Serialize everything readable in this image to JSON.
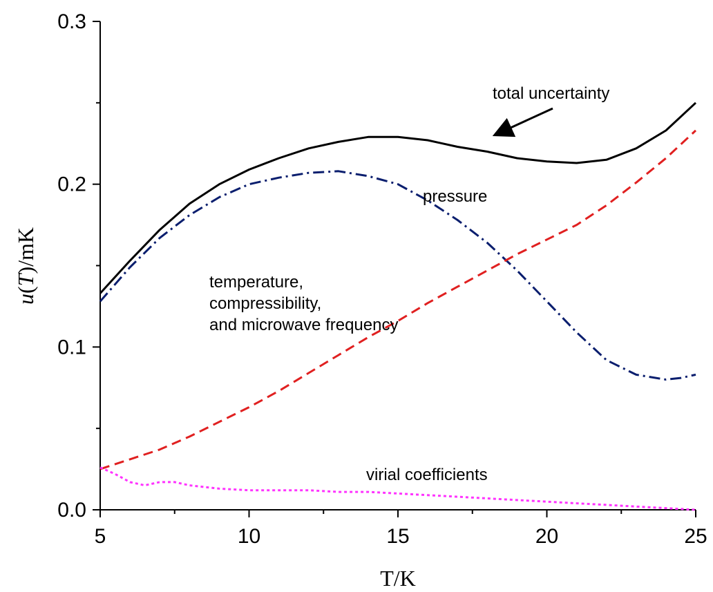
{
  "chart_data": {
    "type": "line",
    "xlabel": "T/K",
    "ylabel_parts": [
      "u",
      "(",
      "T",
      ")/mK"
    ],
    "xlim": [
      5,
      25
    ],
    "ylim": [
      0,
      0.3
    ],
    "x_ticks": [
      "5",
      "10",
      "15",
      "20",
      "25"
    ],
    "y_ticks": [
      "0.0",
      "0.1",
      "0.2",
      "0.3"
    ],
    "grid": false,
    "legend": "none",
    "series": [
      {
        "key": "total",
        "color": "#000000",
        "style": "solid",
        "x": [
          5,
          6,
          7,
          8,
          9,
          10,
          11,
          12,
          13,
          14,
          15,
          16,
          17,
          18,
          19,
          20,
          21,
          22,
          23,
          24,
          25
        ],
        "y": [
          0.133,
          0.153,
          0.172,
          0.188,
          0.2,
          0.209,
          0.216,
          0.222,
          0.226,
          0.229,
          0.229,
          0.227,
          0.223,
          0.22,
          0.216,
          0.214,
          0.213,
          0.215,
          0.222,
          0.233,
          0.25
        ]
      },
      {
        "key": "pressure",
        "color": "#0a1e6e",
        "style": "dashdot",
        "x": [
          5,
          6,
          7,
          8,
          9,
          10,
          11,
          12,
          13,
          14,
          15,
          16,
          17,
          18,
          19,
          20,
          21,
          22,
          23,
          24,
          24.5,
          25
        ],
        "y": [
          0.128,
          0.149,
          0.167,
          0.181,
          0.192,
          0.2,
          0.204,
          0.207,
          0.208,
          0.205,
          0.2,
          0.19,
          0.178,
          0.164,
          0.147,
          0.128,
          0.109,
          0.092,
          0.083,
          0.08,
          0.081,
          0.083
        ]
      },
      {
        "key": "temperature",
        "color": "#e02020",
        "style": "dashed",
        "x": [
          5,
          6,
          7,
          8,
          9,
          10,
          11,
          12,
          13,
          14,
          15,
          16,
          17,
          18,
          19,
          20,
          21,
          22,
          23,
          24,
          25
        ],
        "y": [
          0.025,
          0.031,
          0.037,
          0.045,
          0.054,
          0.063,
          0.073,
          0.084,
          0.095,
          0.106,
          0.116,
          0.127,
          0.137,
          0.147,
          0.157,
          0.166,
          0.175,
          0.187,
          0.201,
          0.216,
          0.233
        ]
      },
      {
        "key": "virial",
        "color": "#ff33ff",
        "style": "dotted",
        "x": [
          5,
          5.5,
          6,
          6.5,
          7,
          7.5,
          8,
          9,
          10,
          11,
          12,
          13,
          14,
          15,
          16,
          17,
          18,
          19,
          20,
          21,
          22,
          23,
          24,
          25
        ],
        "y": [
          0.026,
          0.022,
          0.017,
          0.015,
          0.017,
          0.017,
          0.015,
          0.013,
          0.012,
          0.012,
          0.012,
          0.011,
          0.011,
          0.01,
          0.009,
          0.008,
          0.007,
          0.006,
          0.005,
          0.004,
          0.003,
          0.002,
          0.001,
          0.0
        ]
      }
    ],
    "annotations": [
      {
        "key": "total",
        "lines": [
          "total uncertainty"
        ],
        "arrow_to": [
          18.3,
          0.223
        ]
      },
      {
        "key": "pressure",
        "lines": [
          "pressure"
        ]
      },
      {
        "key": "temperature",
        "lines": [
          "temperature,",
          "compressibility,",
          "and microwave frequency"
        ]
      },
      {
        "key": "virial",
        "lines": [
          "virial coefficients"
        ]
      }
    ]
  }
}
